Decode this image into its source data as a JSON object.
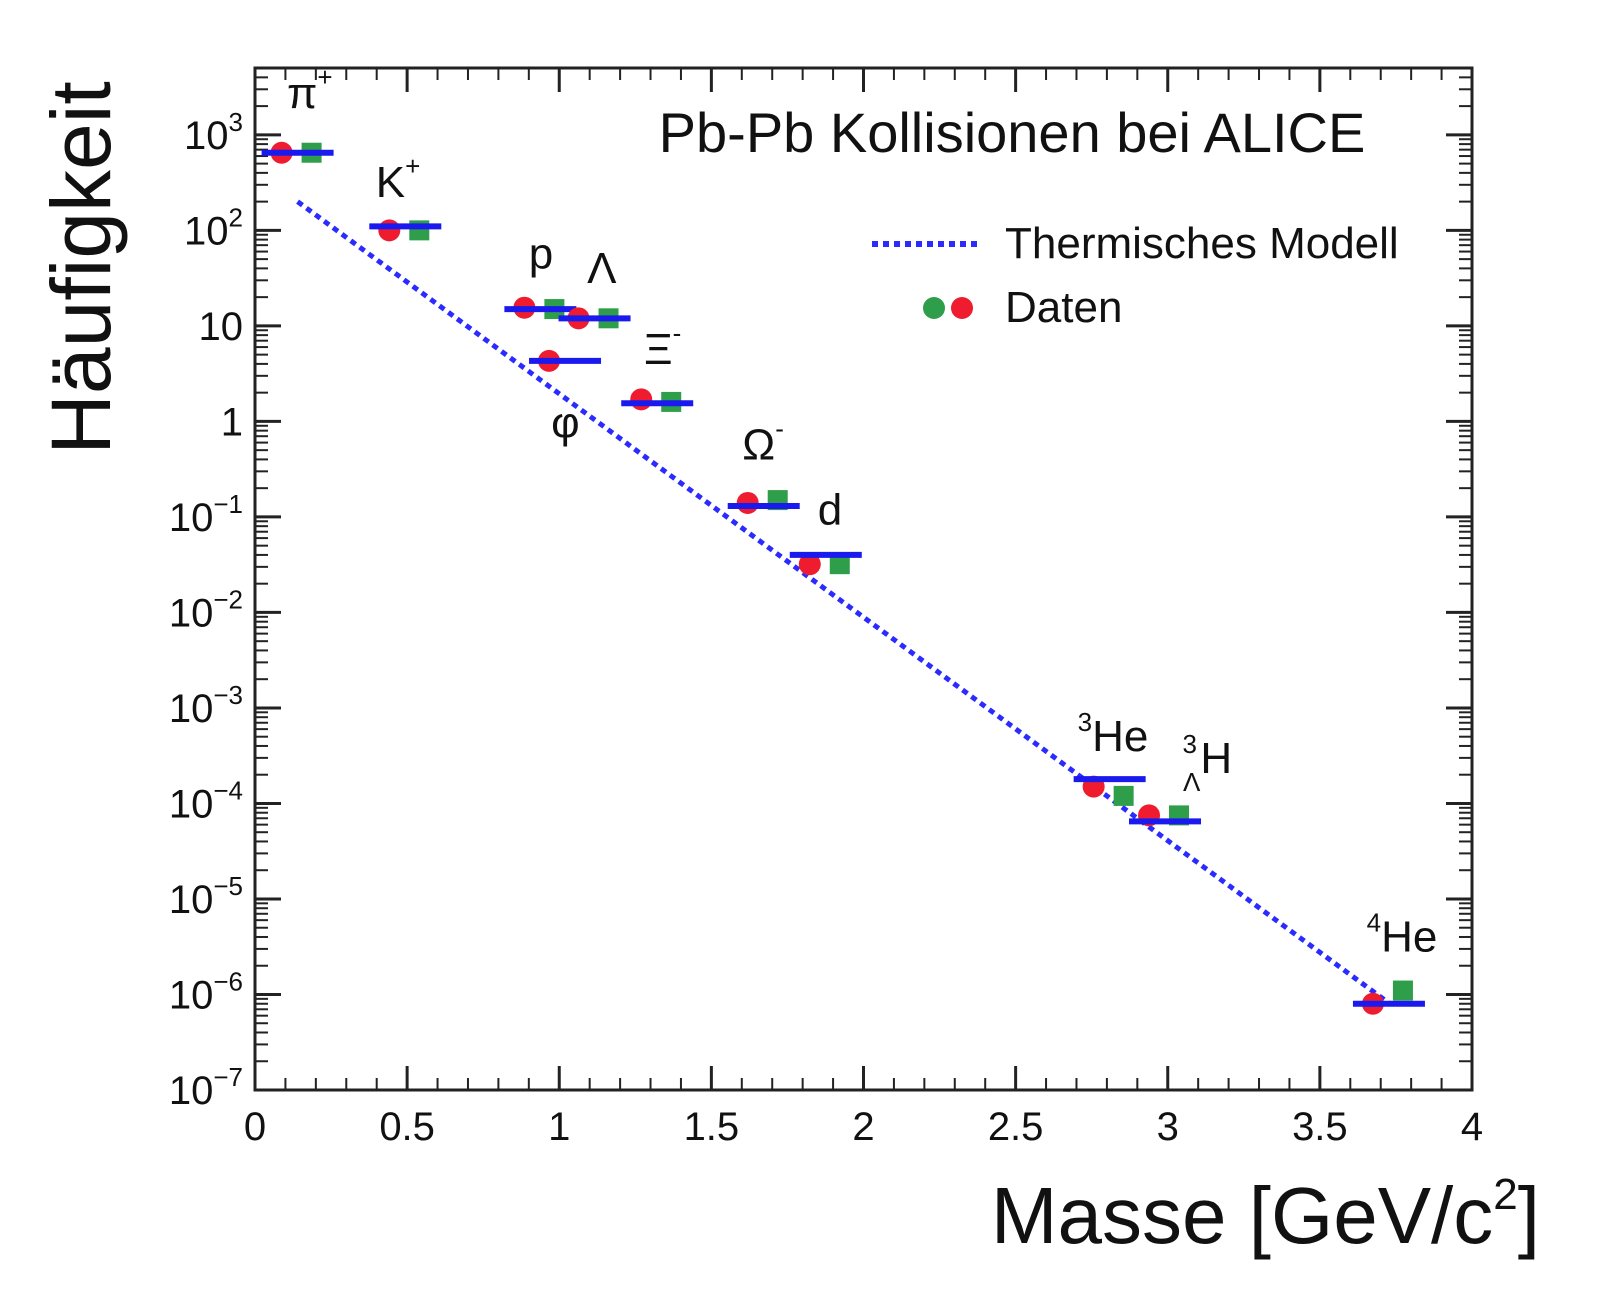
{
  "chart_data": {
    "type": "scatter",
    "title": "Pb-Pb Kollisionen bei ALICE",
    "xlabel": "Masse [GeV/c",
    "xlabel_sup": "2",
    "xlabel_end": "]",
    "ylabel": "Häufigkeit",
    "xlim": [
      0,
      4
    ],
    "ylim_log10": [
      -7,
      3.7
    ],
    "y_scale": "log",
    "grid": false,
    "legend_position": "top-right",
    "x_ticks": [
      {
        "value": 0,
        "label": "0"
      },
      {
        "value": 0.5,
        "label": "0.5"
      },
      {
        "value": 1,
        "label": "1"
      },
      {
        "value": 1.5,
        "label": "1.5"
      },
      {
        "value": 2,
        "label": "2"
      },
      {
        "value": 2.5,
        "label": "2.5"
      },
      {
        "value": 3,
        "label": "3"
      },
      {
        "value": 3.5,
        "label": "3.5"
      },
      {
        "value": 4,
        "label": "4"
      }
    ],
    "y_ticks": [
      {
        "exp": 3,
        "base": "10",
        "sup": "3"
      },
      {
        "exp": 2,
        "base": "10",
        "sup": "2"
      },
      {
        "exp": 1,
        "base": "10",
        "sup": ""
      },
      {
        "exp": 0,
        "base": "1",
        "sup": ""
      },
      {
        "exp": -1,
        "base": "10",
        "sup": "−1"
      },
      {
        "exp": -2,
        "base": "10",
        "sup": "−2"
      },
      {
        "exp": -3,
        "base": "10",
        "sup": "−3"
      },
      {
        "exp": -4,
        "base": "10",
        "sup": "−4"
      },
      {
        "exp": -5,
        "base": "10",
        "sup": "−5"
      },
      {
        "exp": -6,
        "base": "10",
        "sup": "−6"
      },
      {
        "exp": -7,
        "base": "10",
        "sup": "−7"
      }
    ],
    "legend": [
      {
        "name": "Thermisches Modell",
        "kind": "dotted-line"
      },
      {
        "name": "Daten",
        "kind": "markers"
      }
    ],
    "model_line": {
      "x": [
        0.14,
        3.73
      ],
      "y": [
        200,
        8e-07
      ]
    },
    "particles": [
      {
        "label": "π",
        "sup": "+",
        "pre": "",
        "sub_pre": "",
        "mass": 0.14,
        "model": 650,
        "red": 650,
        "green": 650,
        "label_at": {
          "mass": 0.18,
          "log": 3.28
        }
      },
      {
        "label": "K",
        "sup": "+",
        "pre": "",
        "sub_pre": "",
        "mass": 0.494,
        "model": 110,
        "red": 100,
        "green": 100,
        "label_at": {
          "mass": 0.47,
          "log": 2.35
        }
      },
      {
        "label": "p",
        "sup": "",
        "pre": "",
        "sub_pre": "",
        "mass": 0.938,
        "model": 15,
        "red": 15.5,
        "green": 15,
        "label_at": {
          "mass": 0.94,
          "log": 1.6
        }
      },
      {
        "label": "φ",
        "sup": "",
        "pre": "",
        "sub_pre": "",
        "mass": 1.019,
        "model": 4.3,
        "red": 4.3,
        "green": null,
        "label_at": {
          "mass": 1.02,
          "log": -0.17
        }
      },
      {
        "label": "Λ",
        "sup": "",
        "pre": "",
        "sub_pre": "",
        "mass": 1.116,
        "model": 12,
        "red": 12,
        "green": 12,
        "label_at": {
          "mass": 1.14,
          "log": 1.45
        }
      },
      {
        "label": "Ξ",
        "sup": "-",
        "pre": "",
        "sub_pre": "",
        "mass": 1.322,
        "model": 1.55,
        "red": 1.7,
        "green": 1.6,
        "label_at": {
          "mass": 1.34,
          "log": 0.6
        }
      },
      {
        "label": "Ω",
        "sup": "-",
        "pre": "",
        "sub_pre": "",
        "mass": 1.672,
        "model": 0.13,
        "red": 0.14,
        "green": 0.15,
        "label_at": {
          "mass": 1.67,
          "log": -0.4
        }
      },
      {
        "label": "d",
        "sup": "",
        "pre": "",
        "sub_pre": "",
        "mass": 1.876,
        "model": 0.04,
        "red": 0.032,
        "green": 0.032,
        "label_at": {
          "mass": 1.89,
          "log": -1.08
        }
      },
      {
        "label": "He",
        "sup": "",
        "pre": "3",
        "sub_pre": "",
        "mass": 2.809,
        "model": 0.00018,
        "red": 0.00015,
        "green": 0.00012,
        "label_at": {
          "mass": 2.82,
          "log": -3.45
        }
      },
      {
        "label": "H",
        "sup": "",
        "pre": "3",
        "sub_pre": "Λ",
        "mass": 2.991,
        "model": 6.5e-05,
        "red": 7.5e-05,
        "green": 7.5e-05,
        "label_at": {
          "mass": 3.13,
          "log": -3.68
        }
      },
      {
        "label": "He",
        "sup": "",
        "pre": "4",
        "sub_pre": "",
        "mass": 3.727,
        "model": 8e-07,
        "red": 8e-07,
        "green": 1.1e-06,
        "label_at": {
          "mass": 3.77,
          "log": -5.55
        }
      }
    ]
  }
}
